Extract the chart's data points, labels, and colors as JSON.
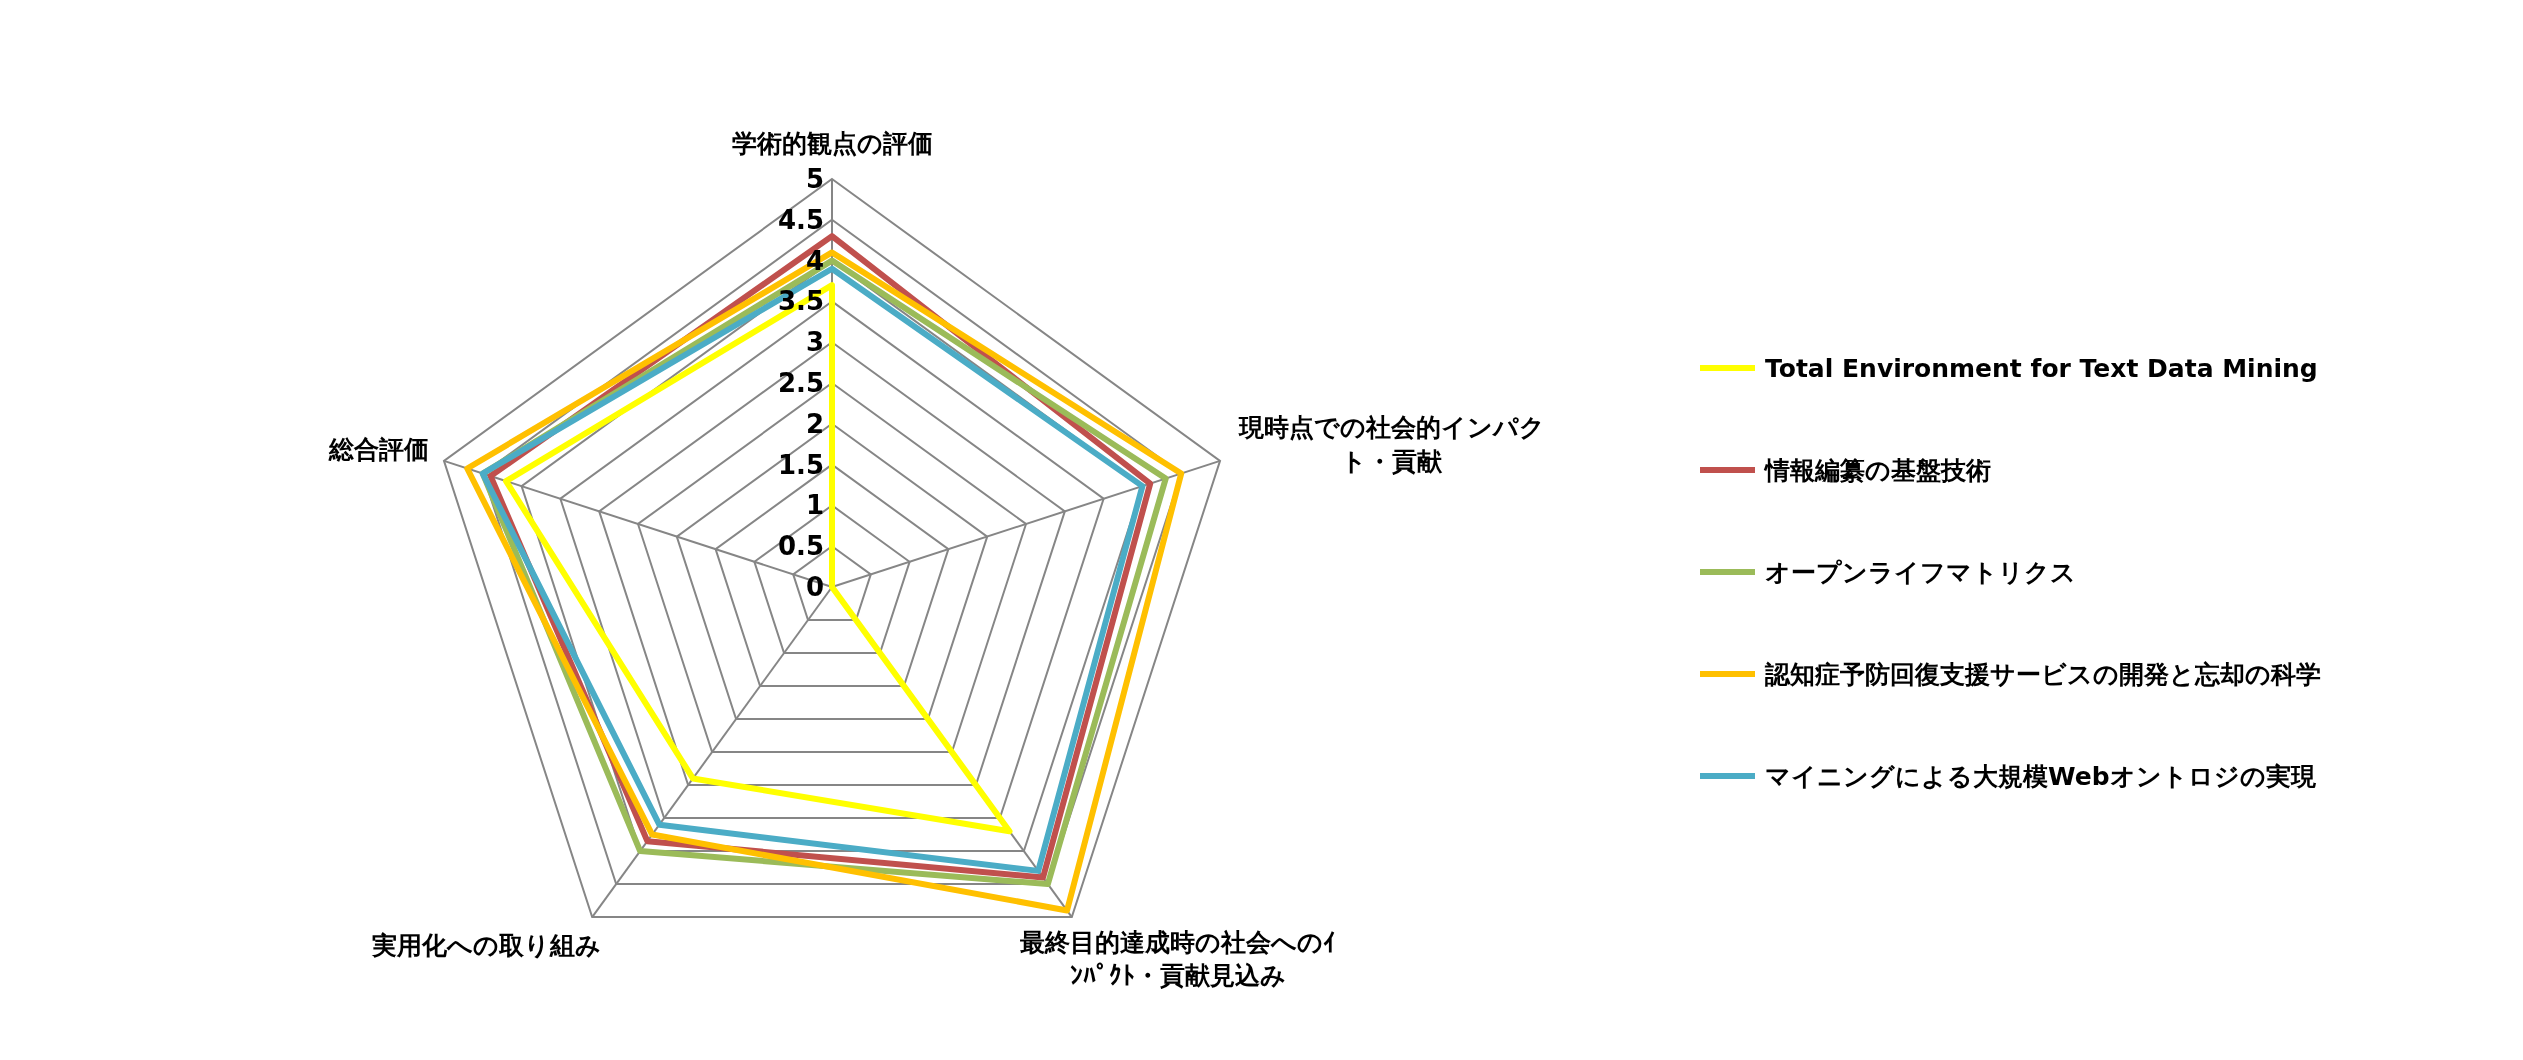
{
  "chart_data": {
    "type": "radar",
    "categories": [
      "学術的観点の評価",
      "現時点での社会的インパクト・貢献",
      "最終目的達成時の社会へのｲﾝﾊﾟｸﾄ・貢献見込み",
      "実用化への取り組み",
      "総合評価"
    ],
    "series": [
      {
        "name": "Total Environment for Text Data Mining",
        "color": "#ffff00",
        "values": [
          3.7,
          0,
          3.7,
          2.9,
          4.2
        ]
      },
      {
        "name": "情報編纂の基盤技術",
        "color": "#c0504d",
        "values": [
          4.3,
          4.1,
          4.4,
          3.85,
          4.4
        ]
      },
      {
        "name": "オープンライフマトリクス",
        "color": "#9bbb59",
        "values": [
          4.0,
          4.3,
          4.5,
          4.0,
          4.5
        ]
      },
      {
        "name": "認知症予防回復支援サービスの開発と忘却の科学",
        "color": "#ffc000",
        "values": [
          4.1,
          4.5,
          4.9,
          3.75,
          4.7
        ]
      },
      {
        "name": "マイニングによる大規模Webオントロジの実現",
        "color": "#4bacc6",
        "values": [
          3.9,
          4.0,
          4.3,
          3.6,
          4.5
        ]
      }
    ],
    "ylim": [
      0,
      5
    ],
    "yticks": [
      0,
      0.5,
      1,
      1.5,
      2,
      2.5,
      3,
      3.5,
      4,
      4.5,
      5
    ],
    "grid": true,
    "legend": "right"
  }
}
